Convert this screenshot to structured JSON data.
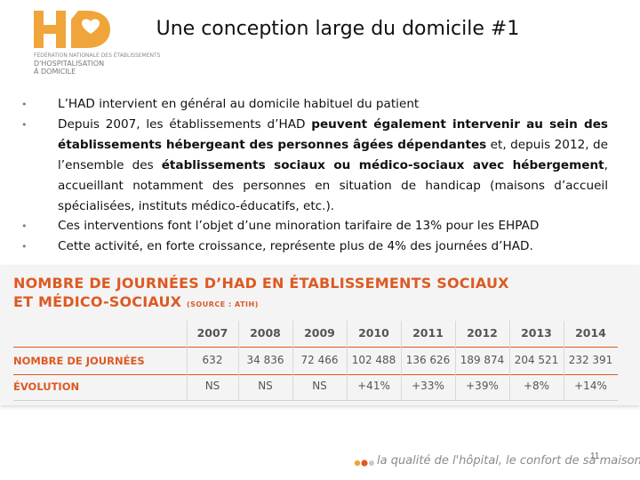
{
  "logo": {
    "brand_text": "HAD",
    "sub_line1": "FÉDÉRATION NATIONALE DES ÉTABLISSEMENTS",
    "sub_line2": "D'HOSPITALISATION",
    "sub_line3": "À DOMICILE",
    "color": "#f0a53a"
  },
  "slide": {
    "title": "Une conception large du domicile #1",
    "page_number": "11"
  },
  "bullets": [
    {
      "text": "L’HAD intervient en général au domicile habituel du patient"
    },
    {
      "parts": [
        "Depuis 2007, les établissements d’HAD ",
        "peuvent également intervenir au sein des établissements hébergeant des personnes âgées dépendantes",
        " et, depuis 2012, de l’ensemble des ",
        "établissements sociaux ou médico-sociaux avec hébergement",
        ", accueillant notamment des personnes en situation de handicap (maisons d’accueil spécialisées, instituts médico-éducatifs, etc.)."
      ]
    },
    {
      "text": "Ces interventions font l’objet d’une minoration tarifaire de 13% pour les EHPAD"
    },
    {
      "text": "Cette activité, en forte croissance, représente plus de 4% des journées d’HAD."
    }
  ],
  "stats": {
    "title_line1": "NOMBRE DE JOURNÉES D’HAD EN ÉTABLISSEMENTS SOCIAUX",
    "title_line2": "ET MÉDICO-SOCIAUX",
    "source": "(SOURCE : ATIH)",
    "accent_color": "#dd5a22",
    "columns": [
      "2007",
      "2008",
      "2009",
      "2010",
      "2011",
      "2012",
      "2013",
      "2014"
    ],
    "rows": [
      {
        "label": "NOMBRE DE JOURNÉES",
        "values": [
          "632",
          "34 836",
          "72 466",
          "102 488",
          "136 626",
          "189 874",
          "204 521",
          "232 391"
        ]
      },
      {
        "label": "ÉVOLUTION",
        "values": [
          "NS",
          "NS",
          "NS",
          "+41%",
          "+33%",
          "+39%",
          "+8%",
          "+14%"
        ]
      }
    ]
  },
  "footer": {
    "tagline": "la qualité de l'hôpital, le confort de sa maison",
    "dot_colors": [
      "#f0a53a",
      "#dd5a22",
      "#c9c9c9"
    ]
  }
}
